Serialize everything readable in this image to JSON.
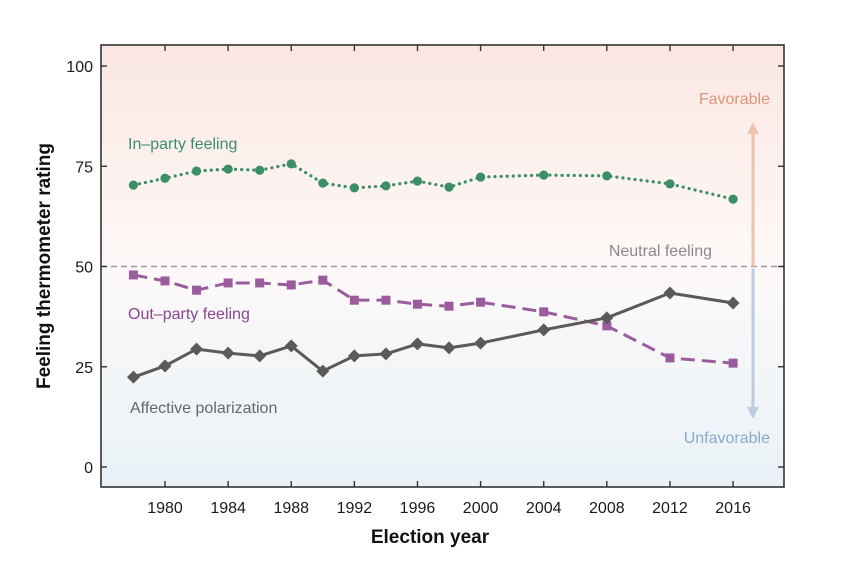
{
  "chart_data": {
    "type": "line",
    "title": "",
    "xlabel": "Election year",
    "ylabel": "Feeling thermometer rating",
    "xlim": [
      1976,
      2019
    ],
    "ylim": [
      -5,
      105
    ],
    "yticks": [
      0,
      25,
      50,
      75,
      100
    ],
    "xticks": [
      1980,
      1984,
      1988,
      1992,
      1996,
      2000,
      2004,
      2008,
      2012,
      2016
    ],
    "grid": false,
    "x": [
      1978,
      1980,
      1982,
      1984,
      1986,
      1988,
      1990,
      1992,
      1994,
      1996,
      1998,
      2000,
      2004,
      2008,
      2012,
      2016
    ],
    "series": [
      {
        "name": "In-party feeling",
        "label": "In–party feeling",
        "color": "#3a8f66",
        "style": "dotted",
        "marker": "circle",
        "values": [
          70.3,
          72.0,
          73.8,
          74.3,
          74.0,
          75.6,
          70.8,
          69.6,
          70.1,
          71.3,
          69.8,
          72.3,
          72.8,
          72.6,
          70.6,
          66.8
        ]
      },
      {
        "name": "Out-party feeling",
        "label": "Out–party feeling",
        "color": "#9b5c9e",
        "style": "dashed",
        "marker": "square",
        "values": [
          47.9,
          46.4,
          44.1,
          45.9,
          45.9,
          45.4,
          46.6,
          41.6,
          41.6,
          40.6,
          40.1,
          41.1,
          38.7,
          35.2,
          27.2,
          25.9
        ]
      },
      {
        "name": "Affective polarization",
        "label": "Affective polarization",
        "color": "#5a5a5a",
        "style": "solid",
        "marker": "diamond",
        "values": [
          22.4,
          25.2,
          29.4,
          28.4,
          27.7,
          30.2,
          23.9,
          27.7,
          28.2,
          30.7,
          29.7,
          30.9,
          34.2,
          37.2,
          43.4,
          40.9
        ]
      }
    ],
    "reference_line": {
      "value": 50,
      "label": "Neutral feeling",
      "color": "#9a9a9a",
      "style": "dashed"
    },
    "annotations": {
      "favorable": {
        "label": "Favorable",
        "color": "#e0957a"
      },
      "unfavorable": {
        "label": "Unfavorable",
        "color": "#8aa7cc"
      }
    },
    "background": {
      "top_color": "#fbe7e1",
      "bottom_color": "#e9f2f7"
    },
    "legend": "inline labels"
  }
}
